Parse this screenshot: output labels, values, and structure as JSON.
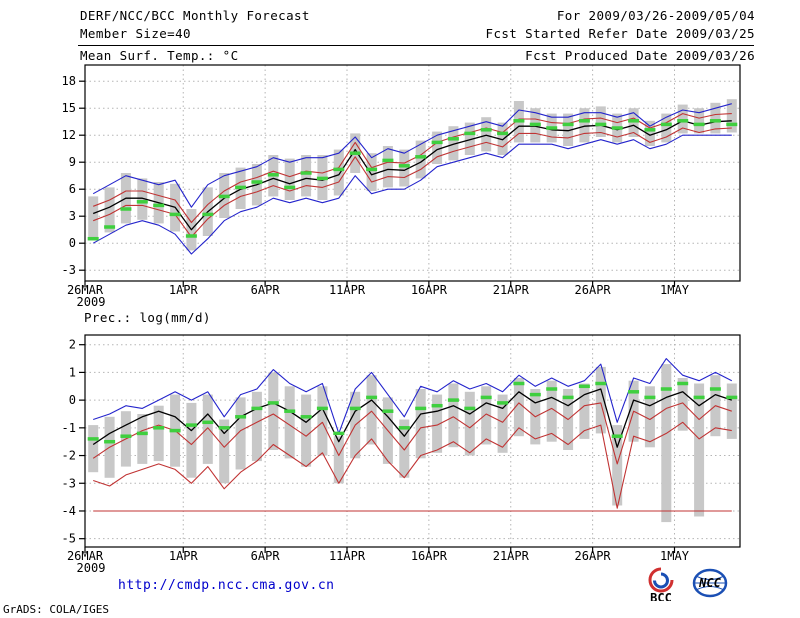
{
  "header": {
    "title": "DERF/NCC/BCC Monthly Forecast",
    "member_size": "Member Size=40",
    "for_range": "For 2009/03/26-2009/05/04",
    "refer_date": "Fcst Started Refer Date 2009/03/25",
    "produced_date": "Fcst Produced Date 2009/03/26"
  },
  "footer": {
    "url": "http://cmdp.ncc.cma.gov.cn",
    "grads_credit": "GrADS: COLA/IGES",
    "logos": [
      {
        "name": "bcc-logo",
        "label": "BCC"
      },
      {
        "name": "ncc-logo",
        "label": "NCC"
      }
    ]
  },
  "colors": {
    "blue": "#2424cc",
    "red": "#c03333",
    "green": "#3fcf3f",
    "black": "#000000",
    "bar": "#c8c8c8",
    "grid": "#b5b5b5",
    "frame": "#000000",
    "url_blue": "#0000cc",
    "logo_blue": "#1a4fb4",
    "logo_red": "#d03030"
  },
  "chart_data": [
    {
      "type": "line",
      "title": "Mean Surf. Temp.: °C",
      "xlabel": "",
      "ylabel": "°C",
      "grid": true,
      "legend": false,
      "n_days": 40,
      "ylim": [
        -4.2,
        19.8
      ],
      "yticks": [
        -3,
        0,
        3,
        6,
        9,
        12,
        15,
        18
      ],
      "x_ticks": [
        {
          "day": 0,
          "label": "26MAR",
          "sublabel": "2009"
        },
        {
          "day": 6,
          "label": "1APR"
        },
        {
          "day": 11,
          "label": "6APR"
        },
        {
          "day": 16,
          "label": "11APR"
        },
        {
          "day": 21,
          "label": "16APR"
        },
        {
          "day": 26,
          "label": "21APR"
        },
        {
          "day": 31,
          "label": "26APR"
        },
        {
          "day": 36,
          "label": "1MAY"
        }
      ],
      "bars": {
        "name": "ensemble-spread",
        "low": [
          0.3,
          1.2,
          2.2,
          2.6,
          2.2,
          1.3,
          -0.8,
          0.8,
          2.8,
          3.8,
          4.2,
          5.2,
          4.8,
          5.2,
          4.8,
          5.3,
          7.8,
          5.8,
          6.2,
          6.3,
          7.2,
          8.8,
          9.2,
          9.8,
          10.2,
          9.8,
          11.2,
          11.2,
          11.2,
          10.8,
          11.2,
          11.8,
          11.2,
          11.8,
          10.8,
          11.2,
          12.2,
          12.2,
          12.2,
          12.3
        ],
        "high": [
          5.2,
          6.2,
          7.8,
          7.2,
          6.8,
          6.6,
          3.8,
          6.2,
          7.8,
          8.4,
          8.8,
          9.8,
          9.4,
          9.8,
          9.8,
          10.4,
          12.2,
          10.0,
          10.8,
          10.4,
          11.4,
          12.4,
          13.0,
          13.4,
          14.0,
          13.4,
          15.8,
          15.0,
          14.4,
          14.4,
          15.0,
          15.2,
          14.4,
          15.0,
          13.6,
          14.4,
          15.4,
          15.0,
          15.6,
          16.0
        ]
      },
      "series": [
        {
          "name": "ensemble-max",
          "color": "blue",
          "style": "line",
          "values": [
            5.5,
            6.5,
            7.5,
            7.0,
            6.5,
            7.0,
            4.0,
            6.5,
            7.5,
            8.0,
            8.5,
            9.5,
            9.0,
            9.5,
            9.5,
            10.0,
            11.8,
            9.5,
            10.5,
            10.0,
            11.0,
            12.0,
            12.5,
            13.0,
            13.5,
            13.0,
            14.8,
            14.5,
            14.0,
            14.0,
            14.5,
            14.5,
            14.0,
            14.5,
            13.0,
            14.0,
            14.8,
            14.5,
            15.0,
            15.5
          ]
        },
        {
          "name": "ensemble-min",
          "color": "blue",
          "style": "line",
          "values": [
            0.0,
            1.0,
            2.0,
            2.5,
            2.0,
            1.0,
            -1.2,
            0.5,
            2.5,
            3.5,
            4.0,
            5.0,
            4.5,
            5.0,
            4.5,
            5.0,
            7.5,
            5.5,
            6.0,
            6.0,
            7.0,
            8.5,
            9.0,
            9.5,
            10.0,
            9.5,
            11.0,
            11.0,
            11.0,
            10.5,
            11.0,
            11.5,
            11.0,
            11.5,
            10.5,
            11.0,
            12.0,
            12.0,
            12.0,
            12.0
          ]
        },
        {
          "name": "upper-quartile",
          "color": "red",
          "style": "line",
          "values": [
            4.1,
            4.8,
            5.8,
            5.8,
            5.3,
            4.8,
            2.3,
            4.3,
            5.8,
            6.8,
            7.3,
            8.0,
            7.4,
            8.0,
            7.8,
            8.4,
            11.2,
            8.4,
            9.0,
            8.9,
            9.8,
            11.2,
            11.8,
            12.3,
            12.8,
            12.3,
            13.8,
            13.8,
            13.4,
            13.3,
            13.8,
            13.9,
            13.4,
            13.9,
            12.8,
            13.4,
            14.4,
            13.9,
            14.3,
            14.4
          ]
        },
        {
          "name": "lower-quartile",
          "color": "red",
          "style": "line",
          "values": [
            2.5,
            3.2,
            4.2,
            4.2,
            3.7,
            3.2,
            0.7,
            2.7,
            4.2,
            5.2,
            5.7,
            6.4,
            5.8,
            6.4,
            6.2,
            6.8,
            9.6,
            6.8,
            7.4,
            7.3,
            8.2,
            9.6,
            10.2,
            10.7,
            11.2,
            10.7,
            12.2,
            12.2,
            11.8,
            11.7,
            12.2,
            12.3,
            11.8,
            12.3,
            11.2,
            11.8,
            12.8,
            12.3,
            12.7,
            12.8
          ]
        },
        {
          "name": "ensemble-median",
          "color": "black",
          "style": "line",
          "values": [
            3.3,
            4.0,
            5.0,
            5.0,
            4.5,
            4.0,
            1.5,
            3.5,
            5.0,
            6.0,
            6.5,
            7.2,
            6.6,
            7.2,
            7.0,
            7.6,
            10.4,
            7.6,
            8.2,
            8.1,
            9.0,
            10.4,
            11.0,
            11.5,
            12.0,
            11.5,
            13.0,
            13.0,
            12.6,
            12.5,
            13.0,
            13.1,
            12.6,
            13.1,
            12.0,
            12.6,
            13.6,
            13.1,
            13.5,
            13.6
          ]
        },
        {
          "name": "green-dash-marks",
          "color": "green",
          "style": "dash",
          "values": [
            0.5,
            1.8,
            3.8,
            4.6,
            4.2,
            3.2,
            0.8,
            3.2,
            5.2,
            6.2,
            6.8,
            7.6,
            6.2,
            7.8,
            7.2,
            8.2,
            10.0,
            8.2,
            9.2,
            8.6,
            9.6,
            11.2,
            11.6,
            12.2,
            12.6,
            12.2,
            13.6,
            13.2,
            12.8,
            13.2,
            13.6,
            13.2,
            12.8,
            13.6,
            12.6,
            13.2,
            13.6,
            13.2,
            13.6,
            13.2
          ]
        }
      ]
    },
    {
      "type": "line",
      "title": "Prec.: log(mm/d)",
      "xlabel": "",
      "ylabel": "log(mm/d)",
      "grid": true,
      "legend": false,
      "n_days": 40,
      "ylim": [
        -5.3,
        2.35
      ],
      "yticks": [
        -5,
        -4,
        -3,
        -2,
        -1,
        0,
        1,
        2
      ],
      "x_ticks": [
        {
          "day": 0,
          "label": "26MAR",
          "sublabel": "2009"
        },
        {
          "day": 6,
          "label": "1APR"
        },
        {
          "day": 11,
          "label": "6APR"
        },
        {
          "day": 16,
          "label": "11APR"
        },
        {
          "day": 21,
          "label": "16APR"
        },
        {
          "day": 26,
          "label": "21APR"
        },
        {
          "day": 31,
          "label": "26APR"
        },
        {
          "day": 36,
          "label": "1MAY"
        }
      ],
      "bars": {
        "name": "ensemble-spread",
        "low": [
          -2.6,
          -2.8,
          -2.4,
          -2.3,
          -2.2,
          -2.4,
          -2.8,
          -2.3,
          -3.0,
          -2.5,
          -2.2,
          -1.8,
          -2.1,
          -2.4,
          -2.0,
          -3.0,
          -2.1,
          -1.6,
          -2.3,
          -2.8,
          -2.1,
          -1.9,
          -1.7,
          -2.0,
          -1.6,
          -1.9,
          -1.3,
          -1.6,
          -1.5,
          -1.8,
          -1.4,
          -1.2,
          -3.8,
          -1.5,
          -1.7,
          -4.4,
          -1.1,
          -4.2,
          -1.3,
          -1.4
        ],
        "high": [
          -0.9,
          -0.6,
          -0.4,
          -0.5,
          -0.2,
          0.2,
          -0.1,
          0.2,
          -0.7,
          0.1,
          0.3,
          1.0,
          0.5,
          0.2,
          0.5,
          -1.3,
          0.3,
          0.9,
          0.1,
          -0.7,
          0.4,
          0.2,
          0.6,
          0.3,
          0.5,
          0.2,
          0.8,
          0.4,
          0.7,
          0.4,
          0.6,
          1.2,
          -0.9,
          0.7,
          0.5,
          1.3,
          0.8,
          0.6,
          0.9,
          0.6
        ]
      },
      "series": [
        {
          "name": "ensemble-max",
          "color": "blue",
          "style": "line",
          "values": [
            -0.7,
            -0.5,
            -0.2,
            -0.3,
            0.0,
            0.3,
            0.0,
            0.3,
            -0.6,
            0.2,
            0.4,
            1.1,
            0.6,
            0.3,
            0.6,
            -1.2,
            0.4,
            1.0,
            0.2,
            -0.6,
            0.5,
            0.3,
            0.7,
            0.4,
            0.6,
            0.3,
            0.9,
            0.5,
            0.8,
            0.5,
            0.7,
            1.3,
            -0.8,
            0.8,
            0.6,
            1.5,
            0.9,
            0.7,
            1.0,
            0.7
          ]
        },
        {
          "name": "ensemble-min",
          "color": "red",
          "style": "line",
          "values": [
            -4.0,
            -4.0,
            -4.0,
            -4.0,
            -4.0,
            -4.0,
            -4.0,
            -4.0,
            -4.0,
            -4.0,
            -4.0,
            -4.0,
            -4.0,
            -4.0,
            -4.0,
            -4.0,
            -4.0,
            -4.0,
            -4.0,
            -4.0,
            -4.0,
            -4.0,
            -4.0,
            -4.0,
            -4.0,
            -4.0,
            -4.0,
            -4.0,
            -4.0,
            -4.0,
            -4.0,
            -4.0,
            -4.0,
            -4.0,
            -4.0,
            -4.0,
            -4.0,
            -4.0,
            -4.0,
            -4.0
          ]
        },
        {
          "name": "upper-quartile",
          "color": "red",
          "style": "line",
          "values": [
            -2.1,
            -1.7,
            -1.4,
            -1.1,
            -0.9,
            -1.1,
            -1.6,
            -1.0,
            -1.7,
            -1.1,
            -0.8,
            -0.5,
            -0.9,
            -1.3,
            -0.8,
            -2.0,
            -0.9,
            -0.4,
            -1.1,
            -1.8,
            -1.0,
            -0.9,
            -0.6,
            -1.0,
            -0.5,
            -0.8,
            -0.1,
            -0.6,
            -0.3,
            -0.7,
            -0.2,
            -0.1,
            -2.3,
            -0.4,
            -0.7,
            -0.3,
            -0.1,
            -0.7,
            -0.2,
            -0.4
          ]
        },
        {
          "name": "lower-quartile",
          "color": "red",
          "style": "line",
          "values": [
            -2.9,
            -3.1,
            -2.7,
            -2.5,
            -2.3,
            -2.5,
            -3.0,
            -2.4,
            -3.2,
            -2.6,
            -2.2,
            -1.6,
            -2.0,
            -2.4,
            -1.9,
            -3.0,
            -2.0,
            -1.4,
            -2.2,
            -2.8,
            -2.0,
            -1.8,
            -1.5,
            -1.9,
            -1.4,
            -1.7,
            -1.0,
            -1.4,
            -1.2,
            -1.6,
            -1.1,
            -0.9,
            -3.9,
            -1.3,
            -1.5,
            -1.2,
            -0.8,
            -1.4,
            -1.0,
            -1.1
          ]
        },
        {
          "name": "ensemble-median",
          "color": "black",
          "style": "line",
          "values": [
            -1.6,
            -1.2,
            -0.9,
            -0.6,
            -0.4,
            -0.6,
            -1.1,
            -0.5,
            -1.2,
            -0.6,
            -0.3,
            -0.1,
            -0.4,
            -0.8,
            -0.3,
            -1.5,
            -0.4,
            0.0,
            -0.6,
            -1.3,
            -0.5,
            -0.4,
            -0.2,
            -0.5,
            -0.1,
            -0.3,
            0.3,
            -0.1,
            0.1,
            -0.2,
            0.2,
            0.4,
            -1.7,
            0.0,
            -0.2,
            0.1,
            0.3,
            -0.2,
            0.2,
            0.0
          ]
        },
        {
          "name": "green-dash-marks",
          "color": "green",
          "style": "dash",
          "values": [
            -1.4,
            -1.5,
            -1.3,
            -1.2,
            -1.0,
            -1.1,
            -0.9,
            -0.8,
            -1.0,
            -0.6,
            -0.3,
            -0.1,
            -0.4,
            -0.6,
            -0.3,
            -1.2,
            -0.3,
            0.1,
            -0.4,
            -1.0,
            -0.3,
            -0.2,
            0.0,
            -0.3,
            0.1,
            -0.1,
            0.6,
            0.2,
            0.4,
            0.1,
            0.5,
            0.6,
            -1.3,
            0.3,
            0.1,
            0.4,
            0.6,
            0.1,
            0.4,
            0.1
          ]
        }
      ]
    }
  ]
}
